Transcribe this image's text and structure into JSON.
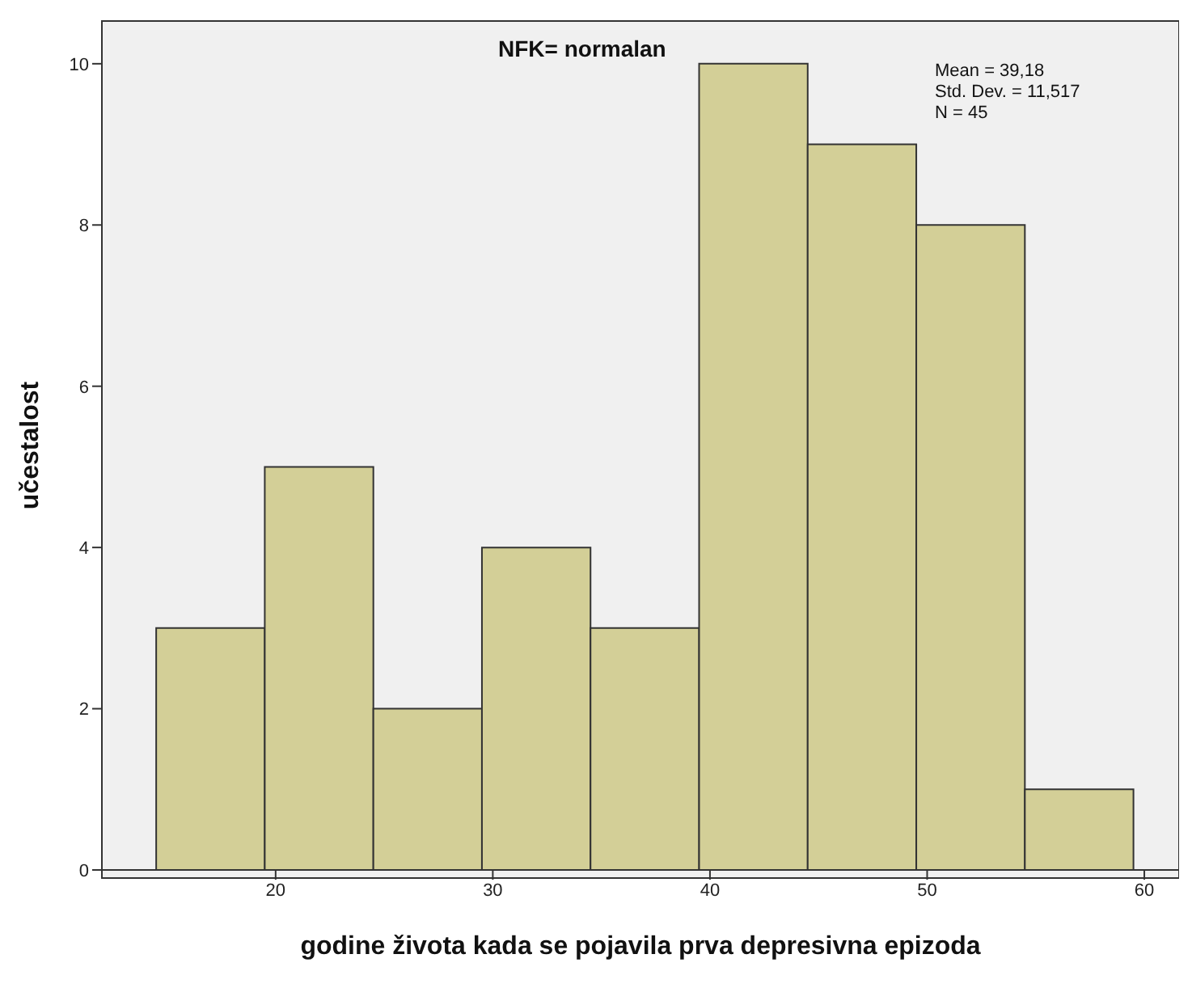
{
  "chart_data": {
    "type": "histogram",
    "title": "NFK= normalan",
    "xlabel": "godine života kada se pojavila prva depresivna epizoda",
    "ylabel": "učestalost",
    "bins": [
      14.5,
      19.5,
      24.5,
      29.5,
      34.5,
      39.5,
      44.5,
      49.5,
      54.5,
      59.5
    ],
    "values": [
      3,
      5,
      2,
      4,
      3,
      10,
      9,
      8,
      1
    ],
    "color": "#d3cf97",
    "xlim": [
      12,
      61.6
    ],
    "xticks": [
      20,
      30,
      40,
      50,
      60
    ],
    "ylim": [
      0,
      10.53
    ],
    "yticks": [
      0,
      2,
      4,
      6,
      8,
      10
    ],
    "annotations": [
      "Mean = 39,18",
      "Std. Dev. = 11,517",
      "N = 45"
    ]
  }
}
